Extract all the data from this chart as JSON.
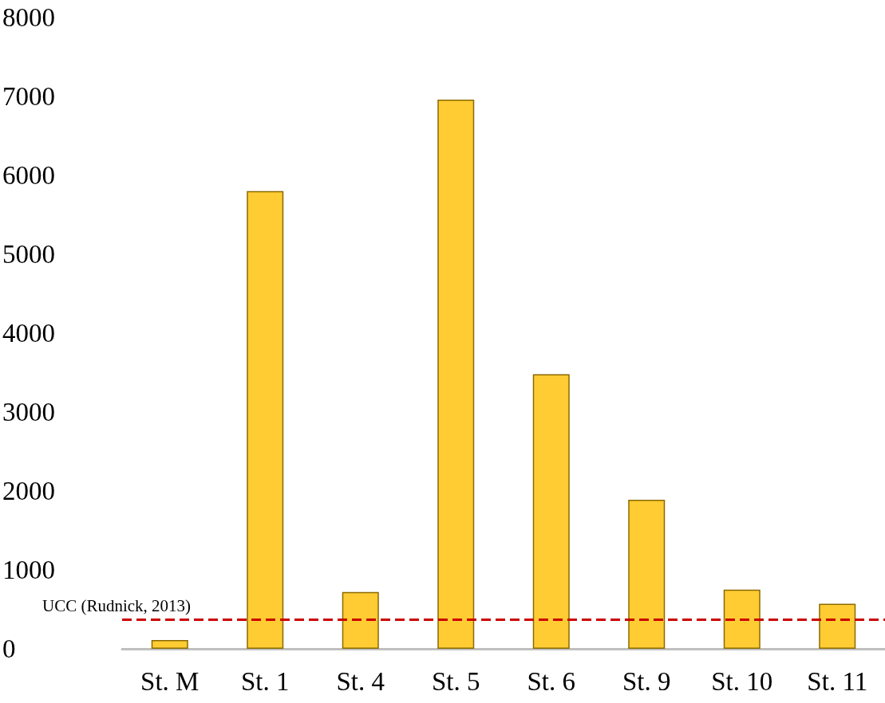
{
  "chart_data": {
    "type": "bar",
    "categories": [
      "St. M",
      "St. 1",
      "St. 4",
      "St. 5",
      "St. 6",
      "St. 9",
      "St. 10",
      "St. 11"
    ],
    "values": [
      110,
      5800,
      720,
      6960,
      3480,
      1890,
      750,
      570
    ],
    "color": "#ffcc33",
    "ylim": [
      0,
      8000
    ],
    "yticks": [
      0,
      1000,
      2000,
      3000,
      4000,
      5000,
      6000,
      7000,
      8000
    ],
    "grid": false,
    "ref_lines": [
      {
        "axis": "y",
        "value": 375,
        "label": "UCC (Rudnick, 2013)",
        "color": "#cc0000",
        "line_style": "dashed"
      }
    ]
  }
}
